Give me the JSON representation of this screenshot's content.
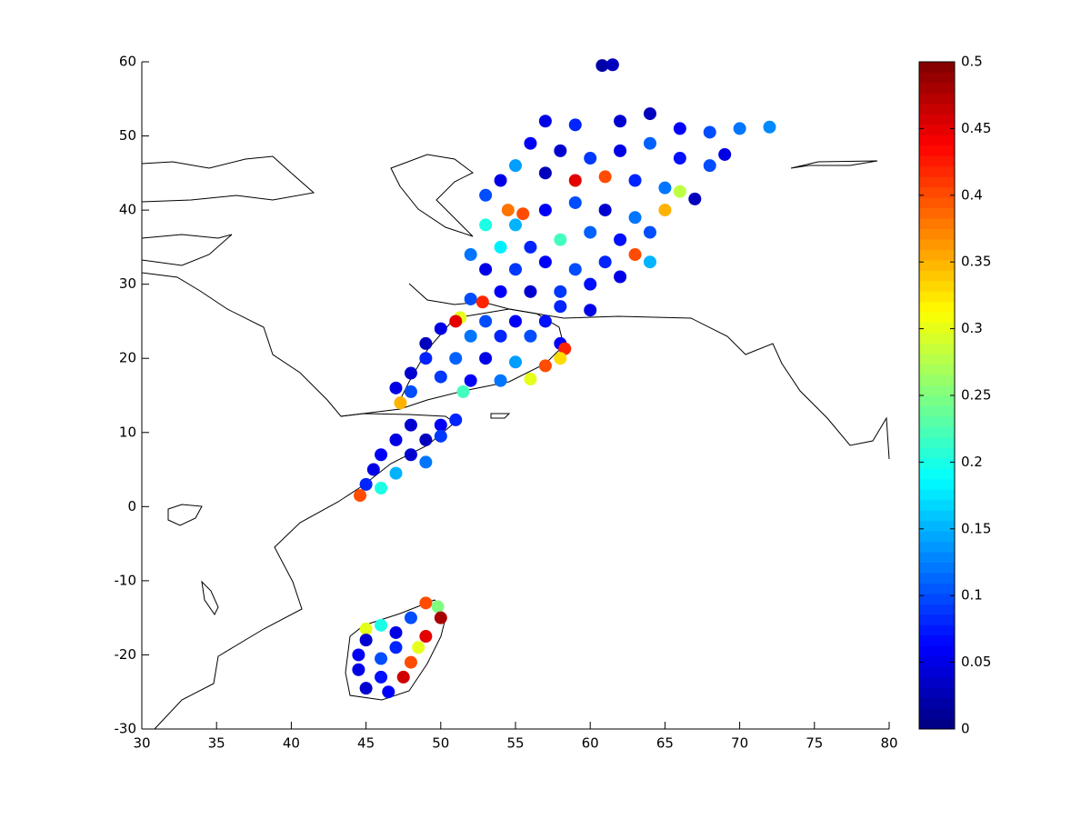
{
  "chart_data": {
    "type": "scatter",
    "x": [
      60.8,
      61.5,
      57,
      59,
      62,
      64,
      66,
      68,
      70,
      72,
      56,
      58,
      60,
      62,
      64,
      66,
      68,
      69,
      55,
      57,
      59,
      61,
      63,
      65,
      66,
      67,
      54,
      53,
      54.5,
      55.5,
      53,
      55,
      57,
      59,
      61,
      63,
      65,
      64,
      62,
      60,
      58,
      56,
      54,
      52,
      53,
      55,
      57,
      59,
      61,
      63,
      64,
      62,
      60,
      58,
      56,
      54,
      52,
      52.8,
      58,
      60,
      51.3,
      51,
      53,
      55,
      57,
      50,
      52,
      54,
      56,
      58,
      58.3,
      49,
      49,
      51,
      53,
      55,
      57,
      58,
      48,
      50,
      52,
      54,
      56,
      47,
      48,
      47.3,
      51.5,
      48,
      50,
      51,
      47,
      49,
      50,
      46,
      48,
      49,
      45.5,
      47,
      45,
      46,
      44.6,
      49,
      49.8,
      50,
      48,
      46,
      45,
      47,
      49,
      45,
      47,
      48.5,
      44.5,
      46,
      48,
      44.5,
      46,
      47.5,
      45,
      46.5
    ],
    "y": [
      59.5,
      59.6,
      52,
      51.5,
      52,
      53,
      51,
      50.5,
      51,
      51.2,
      49,
      48,
      47,
      48,
      49,
      47,
      46,
      47.5,
      46,
      45,
      44,
      44.5,
      44,
      43,
      42.5,
      41.5,
      44,
      42,
      40,
      39.5,
      38,
      38,
      40,
      41,
      40,
      39,
      40,
      37,
      36,
      37,
      36,
      35,
      35,
      34,
      32,
      32,
      33,
      32,
      33,
      34,
      33,
      31,
      30,
      29,
      29,
      29,
      28,
      27.6,
      27,
      26.5,
      25.5,
      25,
      25,
      25,
      25,
      24,
      23,
      23,
      23,
      22,
      21.3,
      22,
      20,
      20,
      20,
      19.5,
      19,
      20,
      18,
      17.5,
      17,
      17,
      17.2,
      16,
      15.5,
      14,
      15.5,
      11,
      11,
      11.7,
      9,
      9,
      9.5,
      7,
      7,
      6,
      5,
      4.5,
      3,
      2.5,
      1.5,
      -13,
      -13.5,
      -15,
      -15,
      -16,
      -16.5,
      -17,
      -17.5,
      -18,
      -19,
      -19,
      -20,
      -20.5,
      -21,
      -22,
      -23,
      -23,
      -24.5,
      -25
    ],
    "values": [
      0.02,
      0.03,
      0.05,
      0.08,
      0.04,
      0.03,
      0.06,
      0.1,
      0.12,
      0.13,
      0.06,
      0.04,
      0.09,
      0.05,
      0.11,
      0.07,
      0.1,
      0.05,
      0.14,
      0.03,
      0.45,
      0.4,
      0.08,
      0.12,
      0.28,
      0.03,
      0.05,
      0.1,
      0.38,
      0.4,
      0.2,
      0.15,
      0.06,
      0.1,
      0.04,
      0.12,
      0.35,
      0.1,
      0.07,
      0.11,
      0.22,
      0.08,
      0.18,
      0.12,
      0.05,
      0.09,
      0.06,
      0.1,
      0.08,
      0.4,
      0.15,
      0.05,
      0.07,
      0.09,
      0.04,
      0.06,
      0.1,
      0.42,
      0.08,
      0.05,
      0.3,
      0.45,
      0.1,
      0.06,
      0.07,
      0.05,
      0.12,
      0.08,
      0.1,
      0.06,
      0.42,
      0.03,
      0.08,
      0.11,
      0.05,
      0.14,
      0.4,
      0.33,
      0.04,
      0.09,
      0.06,
      0.12,
      0.3,
      0.05,
      0.1,
      0.35,
      0.22,
      0.04,
      0.06,
      0.08,
      0.05,
      0.03,
      0.09,
      0.06,
      0.04,
      0.12,
      0.05,
      0.15,
      0.08,
      0.2,
      0.4,
      0.4,
      0.25,
      0.48,
      0.1,
      0.2,
      0.3,
      0.05,
      0.45,
      0.04,
      0.08,
      0.3,
      0.06,
      0.1,
      0.4,
      0.05,
      0.07,
      0.46,
      0.04,
      0.06
    ],
    "colormap": "jet",
    "xlim": [
      30,
      80
    ],
    "xticks": [
      30,
      35,
      40,
      45,
      50,
      55,
      60,
      65,
      70,
      75,
      80
    ],
    "ylim": [
      -30,
      60
    ],
    "yticks": [
      -30,
      -20,
      -10,
      0,
      10,
      20,
      30,
      40,
      50,
      60
    ],
    "colorbar": {
      "lim": [
        0,
        0.5
      ],
      "ticks": [
        0,
        0.05,
        0.1,
        0.15,
        0.2,
        0.25,
        0.3,
        0.35,
        0.4,
        0.45,
        0.5
      ]
    }
  }
}
